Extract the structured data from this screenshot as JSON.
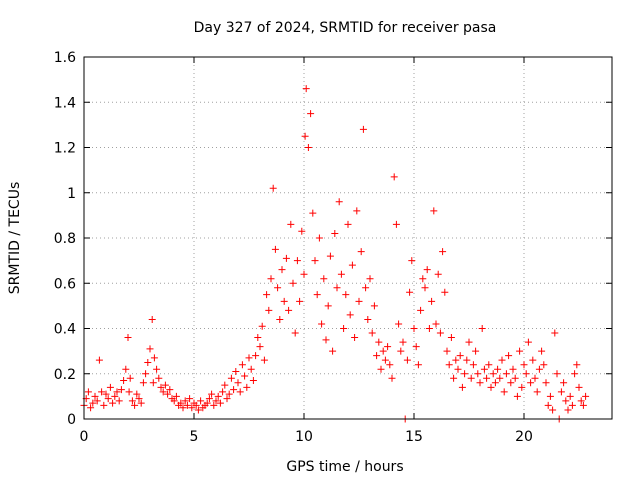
{
  "chart_data": {
    "type": "scatter",
    "title": "Day 327 of 2024, SRMTID for receiver pasa",
    "xlabel": "GPS time / hours",
    "ylabel": "SRMTID / TECUs",
    "xlim": [
      0,
      24
    ],
    "ylim": [
      0,
      1.6
    ],
    "x_ticks": [
      0,
      5,
      10,
      15,
      20
    ],
    "x_tick_labels": [
      "0",
      "5",
      "10",
      "15",
      "20"
    ],
    "y_ticks": [
      0,
      0.2,
      0.4,
      0.6,
      0.8,
      1.0,
      1.2,
      1.4,
      1.6
    ],
    "y_tick_labels": [
      "0",
      "0.2",
      "0.4",
      "0.6",
      "0.8",
      "1",
      "1.2",
      "1.4",
      "1.6"
    ],
    "grid": true,
    "marker": "+",
    "series": [
      {
        "name": "SRMTID",
        "color": "#ff0000",
        "x": [
          0.0,
          0.1,
          0.2,
          0.3,
          0.4,
          0.5,
          0.6,
          0.7,
          0.8,
          0.9,
          1.0,
          1.1,
          1.2,
          1.3,
          1.4,
          1.5,
          1.6,
          1.7,
          1.8,
          1.9,
          2.0,
          2.05,
          2.1,
          2.2,
          2.3,
          2.4,
          2.5,
          2.6,
          2.7,
          2.8,
          2.9,
          3.0,
          3.1,
          3.15,
          3.2,
          3.3,
          3.4,
          3.5,
          3.6,
          3.7,
          3.8,
          3.9,
          4.0,
          4.1,
          4.2,
          4.3,
          4.4,
          4.5,
          4.6,
          4.7,
          4.8,
          4.9,
          5.0,
          5.1,
          5.2,
          5.3,
          5.4,
          5.5,
          5.6,
          5.7,
          5.8,
          5.9,
          6.0,
          6.1,
          6.2,
          6.3,
          6.4,
          6.5,
          6.6,
          6.7,
          6.8,
          6.9,
          7.0,
          7.1,
          7.2,
          7.3,
          7.4,
          7.5,
          7.6,
          7.7,
          7.8,
          7.9,
          8.0,
          8.1,
          8.2,
          8.3,
          8.4,
          8.5,
          8.6,
          8.7,
          8.8,
          8.9,
          9.0,
          9.1,
          9.2,
          9.3,
          9.4,
          9.5,
          9.6,
          9.7,
          9.8,
          9.9,
          10.0,
          10.05,
          10.1,
          10.2,
          10.3,
          10.4,
          10.5,
          10.6,
          10.7,
          10.8,
          10.9,
          11.0,
          11.1,
          11.2,
          11.3,
          11.4,
          11.5,
          11.6,
          11.7,
          11.8,
          11.9,
          12.0,
          12.1,
          12.2,
          12.3,
          12.4,
          12.5,
          12.6,
          12.7,
          12.8,
          12.9,
          13.0,
          13.1,
          13.2,
          13.3,
          13.4,
          13.5,
          13.6,
          13.7,
          13.8,
          13.9,
          14.0,
          14.1,
          14.2,
          14.3,
          14.4,
          14.5,
          14.6,
          14.7,
          14.8,
          14.9,
          15.0,
          15.1,
          15.2,
          15.3,
          15.4,
          15.5,
          15.6,
          15.7,
          15.8,
          15.9,
          16.0,
          16.1,
          16.2,
          16.3,
          16.4,
          16.5,
          16.6,
          16.7,
          16.8,
          16.9,
          17.0,
          17.1,
          17.2,
          17.3,
          17.4,
          17.5,
          17.6,
          17.7,
          17.8,
          17.9,
          18.0,
          18.1,
          18.2,
          18.3,
          18.4,
          18.5,
          18.6,
          18.7,
          18.8,
          18.9,
          19.0,
          19.1,
          19.2,
          19.3,
          19.4,
          19.5,
          19.6,
          19.7,
          19.8,
          19.9,
          20.0,
          20.1,
          20.2,
          20.3,
          20.4,
          20.5,
          20.6,
          20.7,
          20.8,
          20.9,
          21.0,
          21.1,
          21.2,
          21.3,
          21.4,
          21.5,
          21.6,
          21.7,
          21.8,
          21.9,
          22.0,
          22.1,
          22.2,
          22.3,
          22.4,
          22.5,
          22.6,
          22.7,
          22.8
        ],
        "y": [
          0.06,
          0.09,
          0.12,
          0.05,
          0.07,
          0.1,
          0.08,
          0.26,
          0.12,
          0.06,
          0.11,
          0.09,
          0.14,
          0.07,
          0.1,
          0.12,
          0.08,
          0.13,
          0.17,
          0.22,
          0.36,
          0.12,
          0.18,
          0.08,
          0.06,
          0.11,
          0.09,
          0.07,
          0.16,
          0.2,
          0.25,
          0.31,
          0.44,
          0.16,
          0.27,
          0.22,
          0.18,
          0.14,
          0.12,
          0.15,
          0.11,
          0.13,
          0.09,
          0.08,
          0.1,
          0.06,
          0.07,
          0.05,
          0.08,
          0.06,
          0.09,
          0.05,
          0.07,
          0.06,
          0.04,
          0.08,
          0.05,
          0.06,
          0.07,
          0.09,
          0.11,
          0.06,
          0.08,
          0.1,
          0.07,
          0.12,
          0.15,
          0.09,
          0.11,
          0.18,
          0.13,
          0.21,
          0.16,
          0.12,
          0.24,
          0.19,
          0.14,
          0.27,
          0.22,
          0.17,
          0.28,
          0.36,
          0.32,
          0.41,
          0.26,
          0.55,
          0.48,
          0.62,
          1.02,
          0.75,
          0.58,
          0.44,
          0.66,
          0.52,
          0.71,
          0.48,
          0.86,
          0.6,
          0.38,
          0.7,
          0.52,
          0.83,
          0.64,
          1.25,
          1.46,
          1.2,
          1.35,
          0.91,
          0.7,
          0.55,
          0.8,
          0.42,
          0.62,
          0.35,
          0.5,
          0.72,
          0.3,
          0.82,
          0.58,
          0.96,
          0.64,
          0.4,
          0.55,
          0.86,
          0.46,
          0.68,
          0.36,
          0.92,
          0.52,
          0.74,
          1.28,
          0.58,
          0.44,
          0.62,
          0.38,
          0.5,
          0.28,
          0.34,
          0.22,
          0.3,
          0.26,
          0.32,
          0.24,
          0.18,
          1.07,
          0.86,
          0.42,
          0.3,
          0.34,
          0.0,
          0.26,
          0.56,
          0.7,
          0.4,
          0.32,
          0.24,
          0.48,
          0.62,
          0.58,
          0.66,
          0.4,
          0.52,
          0.92,
          0.42,
          0.64,
          0.38,
          0.74,
          0.56,
          0.3,
          0.24,
          0.36,
          0.18,
          0.26,
          0.22,
          0.28,
          0.14,
          0.2,
          0.26,
          0.34,
          0.18,
          0.24,
          0.3,
          0.2,
          0.16,
          0.4,
          0.22,
          0.18,
          0.24,
          0.14,
          0.2,
          0.16,
          0.22,
          0.18,
          0.26,
          0.12,
          0.2,
          0.28,
          0.16,
          0.22,
          0.18,
          0.1,
          0.3,
          0.14,
          0.24,
          0.2,
          0.34,
          0.16,
          0.26,
          0.18,
          0.12,
          0.22,
          0.3,
          0.24,
          0.16,
          0.06,
          0.1,
          0.04,
          0.38,
          0.2,
          0.0,
          0.12,
          0.16,
          0.08,
          0.04,
          0.1,
          0.06,
          0.2,
          0.24,
          0.14,
          0.08,
          0.06,
          0.1
        ]
      }
    ]
  }
}
